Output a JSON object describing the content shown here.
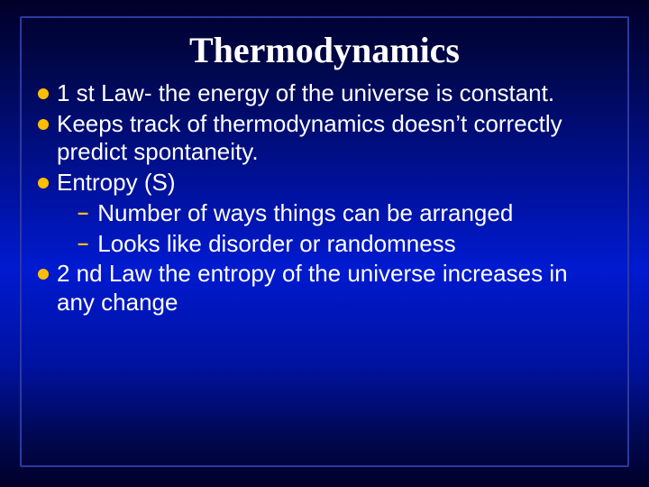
{
  "slide": {
    "title": "Thermodynamics",
    "title_color": "#ffffff",
    "title_fontsize": 40,
    "title_fontfamily": "Times New Roman",
    "background_gradient": [
      "#000028",
      "#000850",
      "#0012a0",
      "#001ad0",
      "#0012a0",
      "#000850",
      "#000028"
    ],
    "border_color": "#2a3aa0",
    "body_color": "#ffffff",
    "body_fontsize": 26,
    "bullet_color": "#ffbf00",
    "bullets": [
      {
        "level": 1,
        "text": "1 st Law- the energy of the universe is constant."
      },
      {
        "level": 1,
        "text": "Keeps track of thermodynamics doesn’t correctly predict spontaneity."
      },
      {
        "level": 1,
        "text": "Entropy (S)"
      },
      {
        "level": 2,
        "text": "Number of ways things can be arranged"
      },
      {
        "level": 2,
        "text": "Looks like disorder or randomness"
      },
      {
        "level": 1,
        "text": "2 nd Law the entropy of the universe increases in any change"
      }
    ]
  }
}
